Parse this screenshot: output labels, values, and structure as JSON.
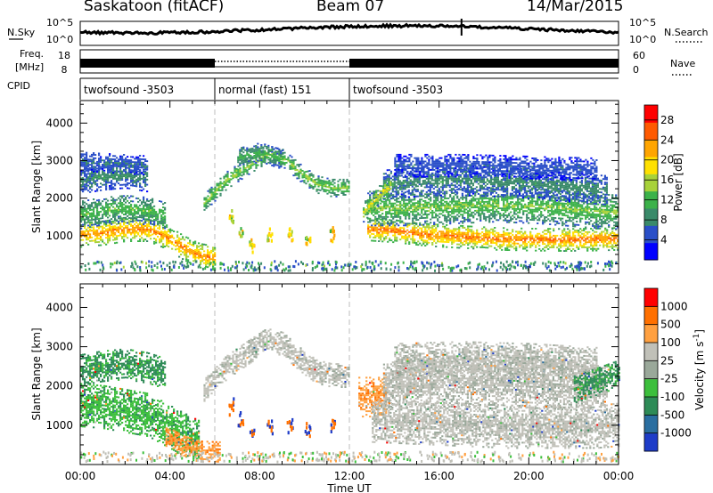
{
  "header": {
    "station": "Saskatoon (fitACF)",
    "beam": "Beam 07",
    "date": "14/Mar/2015"
  },
  "status": {
    "nsky_label": "N.Sky",
    "nsearch_label": "N.Search",
    "freq_label_line1": "Freq.",
    "freq_label_line2": "[MHz]",
    "nave_label": "Nave",
    "cpid_label": "CPID",
    "nsky_ticks": [
      "10^5",
      "10^0"
    ],
    "freq_ticks": [
      "18",
      "8"
    ],
    "nave_ticks": [
      "60",
      "0"
    ]
  },
  "cpid_segments": [
    {
      "label": "twofsound -3503",
      "start": 0,
      "end": 6
    },
    {
      "label": "normal (fast) 151",
      "start": 6,
      "end": 12
    },
    {
      "label": "twofsound -3503",
      "start": 12,
      "end": 24
    }
  ],
  "chart_data": [
    {
      "type": "heatmap",
      "quantity": "Power",
      "xlabel": "Time UT",
      "ylabel": "Slant Range [km]",
      "xlim": [
        0,
        24
      ],
      "ylim": [
        0,
        4600
      ],
      "x_ticks": [
        "00:00",
        "04:00",
        "08:00",
        "12:00",
        "16:00",
        "20:00",
        "00:00"
      ],
      "y_ticks": [
        1000,
        2000,
        3000,
        4000
      ],
      "colorbar_label": "Power [dB]",
      "colorbar_ticks": [
        4,
        8,
        12,
        16,
        20,
        24,
        28
      ],
      "colorbar_range": [
        0,
        31
      ],
      "colorbar_colors": [
        "#0000ff",
        "#2a4fc8",
        "#3a8a6a",
        "#3cb24a",
        "#a8d23a",
        "#ffe000",
        "#ffa500",
        "#ff5a00",
        "#ff0000"
      ],
      "bands": [
        {
          "t": [
            0.0,
            1.0,
            2.0,
            3.0,
            3.8,
            4.6,
            5.3,
            6.0
          ],
          "r": [
            1000,
            1050,
            1150,
            1150,
            950,
            650,
            450,
            380
          ],
          "w": 320,
          "p": 24
        },
        {
          "t": [
            0.0,
            1.0,
            2.0,
            3.0,
            3.8
          ],
          "r": [
            1550,
            1650,
            1700,
            1650,
            1500
          ],
          "w": 380,
          "p": 13
        },
        {
          "t": [
            0.0,
            1.0,
            2.0,
            3.0
          ],
          "r": [
            2450,
            2550,
            2600,
            2500
          ],
          "w": 350,
          "p": 9
        },
        {
          "t": [
            0.0,
            1.5,
            3.0
          ],
          "r": [
            2950,
            2900,
            2850
          ],
          "w": 250,
          "p": 7
        },
        {
          "t": [
            5.5,
            6.5,
            7.5,
            8.3,
            9.0,
            9.8,
            10.5,
            11.2,
            12.0
          ],
          "r": [
            1850,
            2450,
            2850,
            3150,
            3050,
            2650,
            2350,
            2250,
            2250
          ],
          "w": 230,
          "p": 15
        },
        {
          "t": [
            7.0,
            8.0,
            9.0
          ],
          "r": [
            3050,
            3200,
            3000
          ],
          "w": 250,
          "p": 12
        },
        {
          "t": [
            12.8,
            14.0,
            15.5,
            17.0,
            18.5,
            20.0,
            21.5,
            23.0,
            24.0
          ],
          "r": [
            1150,
            1100,
            1000,
            950,
            900,
            880,
            870,
            880,
            900
          ],
          "w": 300,
          "p": 25
        },
        {
          "t": [
            12.8,
            14.5,
            16.5,
            18.5,
            20.5,
            22.5,
            24.0
          ],
          "r": [
            1700,
            1700,
            1750,
            1800,
            1750,
            1650,
            1600
          ],
          "w": 450,
          "p": 14
        },
        {
          "t": [
            13.5,
            15.5,
            17.5,
            19.5,
            21.5,
            23.5
          ],
          "r": [
            2350,
            2450,
            2450,
            2400,
            2300,
            2200
          ],
          "w": 400,
          "p": 9
        },
        {
          "t": [
            14.0,
            17.0,
            20.0,
            23.0
          ],
          "r": [
            2850,
            2850,
            2800,
            2750
          ],
          "w": 300,
          "p": 6
        },
        {
          "t": [
            12.6,
            13.2,
            13.8
          ],
          "r": [
            1600,
            2000,
            2300
          ],
          "w": 250,
          "p": 18
        }
      ]
    },
    {
      "type": "heatmap",
      "quantity": "Velocity",
      "xlabel": "Time UT",
      "ylabel": "Slant Range [km]",
      "xlim": [
        0,
        24
      ],
      "ylim": [
        0,
        4600
      ],
      "x_ticks": [
        "00:00",
        "04:00",
        "08:00",
        "12:00",
        "16:00",
        "20:00",
        "00:00"
      ],
      "y_ticks": [
        1000,
        2000,
        3000,
        4000
      ],
      "colorbar_label": "Velocity [m s^-1]",
      "colorbar_ticks": [
        "1000",
        "500",
        "100",
        "25",
        "-25",
        "-100",
        "-500",
        "-1000"
      ],
      "colorbar_colors": [
        "#1e3cc8",
        "#2a6ea0",
        "#2e8b57",
        "#3cbf3c",
        "#9aa89a",
        "#c0c0b8",
        "#ffa040",
        "#ff7000",
        "#ff0000"
      ],
      "bands": [
        {
          "t": [
            0.0,
            1.0,
            2.0,
            3.0,
            3.8
          ],
          "r": [
            2400,
            2500,
            2550,
            2450,
            2300
          ],
          "w": 400,
          "v": "green"
        },
        {
          "t": [
            0.0,
            1.0,
            2.0,
            3.0,
            3.8,
            4.6,
            5.3
          ],
          "r": [
            1500,
            1450,
            1350,
            1250,
            1000,
            750,
            550
          ],
          "w": 550,
          "v": "lime"
        },
        {
          "t": [
            3.8,
            4.6,
            5.4,
            6.2
          ],
          "r": [
            700,
            450,
            320,
            300
          ],
          "w": 250,
          "v": "orange"
        },
        {
          "t": [
            5.5,
            6.5,
            7.5,
            8.3,
            9.0,
            9.8,
            10.5,
            11.2,
            12.0
          ],
          "r": [
            1850,
            2450,
            2850,
            3150,
            3050,
            2650,
            2350,
            2250,
            2250
          ],
          "w": 300,
          "v": "gray"
        },
        {
          "t": [
            12.4,
            13.0,
            13.6
          ],
          "r": [
            1700,
            1700,
            1700
          ],
          "w": 500,
          "v": "orange"
        },
        {
          "t": [
            13.0,
            15.0,
            17.0,
            19.0,
            21.0,
            23.0,
            24.0
          ],
          "r": [
            1100,
            1050,
            1000,
            950,
            950,
            950,
            1000
          ],
          "w": 550,
          "v": "gray"
        },
        {
          "t": [
            13.5,
            16.0,
            18.5,
            21.0,
            23.5
          ],
          "r": [
            2000,
            2050,
            2050,
            2000,
            1900
          ],
          "w": 600,
          "v": "gray"
        },
        {
          "t": [
            14.0,
            17.0,
            20.0,
            23.0
          ],
          "r": [
            2600,
            2650,
            2600,
            2500
          ],
          "w": 450,
          "v": "gray"
        },
        {
          "t": [
            22.0,
            23.0,
            24.0
          ],
          "r": [
            1900,
            2100,
            2300
          ],
          "w": 350,
          "v": "green"
        }
      ]
    }
  ]
}
